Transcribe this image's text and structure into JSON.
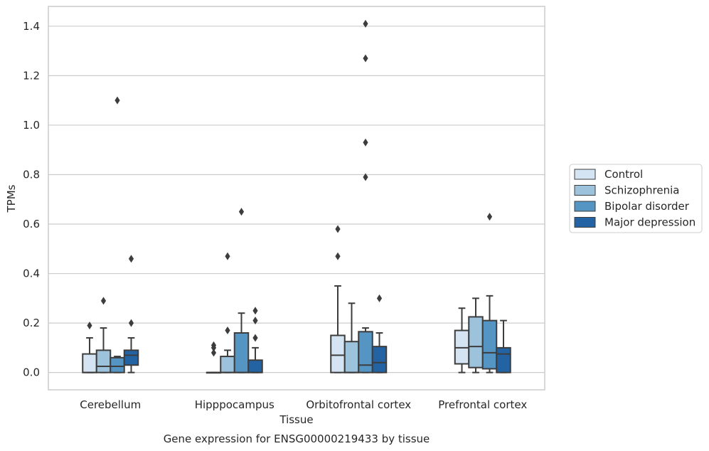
{
  "caption": "Gene expression for ENSG00000219433 by tissue",
  "colors": {
    "Control": "#d4e4f2",
    "Schizophrenia": "#9cc2dc",
    "Bipolar disorder": "#5595c4",
    "Major depression": "#2463a3",
    "box_edge": "#3d3d3d",
    "grid": "#cccccc",
    "frame": "#cccccc"
  },
  "chart_data": {
    "type": "box",
    "xlabel": "Tissue",
    "ylabel": "TPMs",
    "ylim": [
      -0.07,
      1.48
    ],
    "yticks": [
      0.0,
      0.2,
      0.4,
      0.6,
      0.8,
      1.0,
      1.2,
      1.4
    ],
    "ytick_labels": [
      "0.0",
      "0.2",
      "0.4",
      "0.6",
      "0.8",
      "1.0",
      "1.2",
      "1.4"
    ],
    "grid": "horizontal",
    "legend_position": "right, outside plot",
    "categories": [
      "Cerebellum",
      "Hipppocampus",
      "Orbitofrontal cortex",
      "Prefrontal cortex"
    ],
    "series": [
      {
        "name": "Control",
        "boxes": [
          {
            "whislo": 0.0,
            "q1": 0.0,
            "med": 0.0,
            "q3": 0.075,
            "whishi": 0.14,
            "fliers": [
              0.19
            ]
          },
          {
            "whislo": 0.0,
            "q1": 0.0,
            "med": 0.0,
            "q3": 0.0,
            "whishi": 0.0,
            "fliers": [
              0.08,
              0.1,
              0.11
            ]
          },
          {
            "whislo": 0.0,
            "q1": 0.0,
            "med": 0.07,
            "q3": 0.15,
            "whishi": 0.35,
            "fliers": [
              0.47,
              0.58
            ]
          },
          {
            "whislo": 0.0,
            "q1": 0.035,
            "med": 0.1,
            "q3": 0.17,
            "whishi": 0.26,
            "fliers": []
          }
        ]
      },
      {
        "name": "Schizophrenia",
        "boxes": [
          {
            "whislo": 0.0,
            "q1": 0.0,
            "med": 0.025,
            "q3": 0.09,
            "whishi": 0.18,
            "fliers": [
              0.29
            ]
          },
          {
            "whislo": 0.0,
            "q1": 0.0,
            "med": 0.0,
            "q3": 0.065,
            "whishi": 0.09,
            "fliers": [
              0.17,
              0.47
            ]
          },
          {
            "whislo": 0.0,
            "q1": 0.0,
            "med": 0.0,
            "q3": 0.125,
            "whishi": 0.28,
            "fliers": []
          },
          {
            "whislo": 0.0,
            "q1": 0.02,
            "med": 0.105,
            "q3": 0.225,
            "whishi": 0.3,
            "fliers": []
          }
        ]
      },
      {
        "name": "Bipolar disorder",
        "boxes": [
          {
            "whislo": 0.0,
            "q1": 0.0,
            "med": 0.025,
            "q3": 0.06,
            "whishi": 0.065,
            "fliers": [
              1.1
            ]
          },
          {
            "whislo": 0.0,
            "q1": 0.0,
            "med": 0.0,
            "q3": 0.16,
            "whishi": 0.24,
            "fliers": [
              0.65
            ]
          },
          {
            "whislo": 0.0,
            "q1": 0.0,
            "med": 0.03,
            "q3": 0.165,
            "whishi": 0.18,
            "fliers": [
              0.79,
              0.93,
              1.27,
              1.41
            ]
          },
          {
            "whislo": 0.0,
            "q1": 0.015,
            "med": 0.08,
            "q3": 0.21,
            "whishi": 0.31,
            "fliers": [
              0.63
            ]
          }
        ]
      },
      {
        "name": "Major depression",
        "boxes": [
          {
            "whislo": 0.0,
            "q1": 0.03,
            "med": 0.07,
            "q3": 0.09,
            "whishi": 0.14,
            "fliers": [
              0.2,
              0.46
            ]
          },
          {
            "whislo": 0.0,
            "q1": 0.0,
            "med": 0.0,
            "q3": 0.05,
            "whishi": 0.1,
            "fliers": [
              0.14,
              0.21,
              0.25
            ]
          },
          {
            "whislo": 0.0,
            "q1": 0.0,
            "med": 0.04,
            "q3": 0.105,
            "whishi": 0.16,
            "fliers": [
              0.3
            ]
          },
          {
            "whislo": 0.0,
            "q1": 0.0,
            "med": 0.075,
            "q3": 0.1,
            "whishi": 0.21,
            "fliers": []
          }
        ]
      }
    ]
  }
}
